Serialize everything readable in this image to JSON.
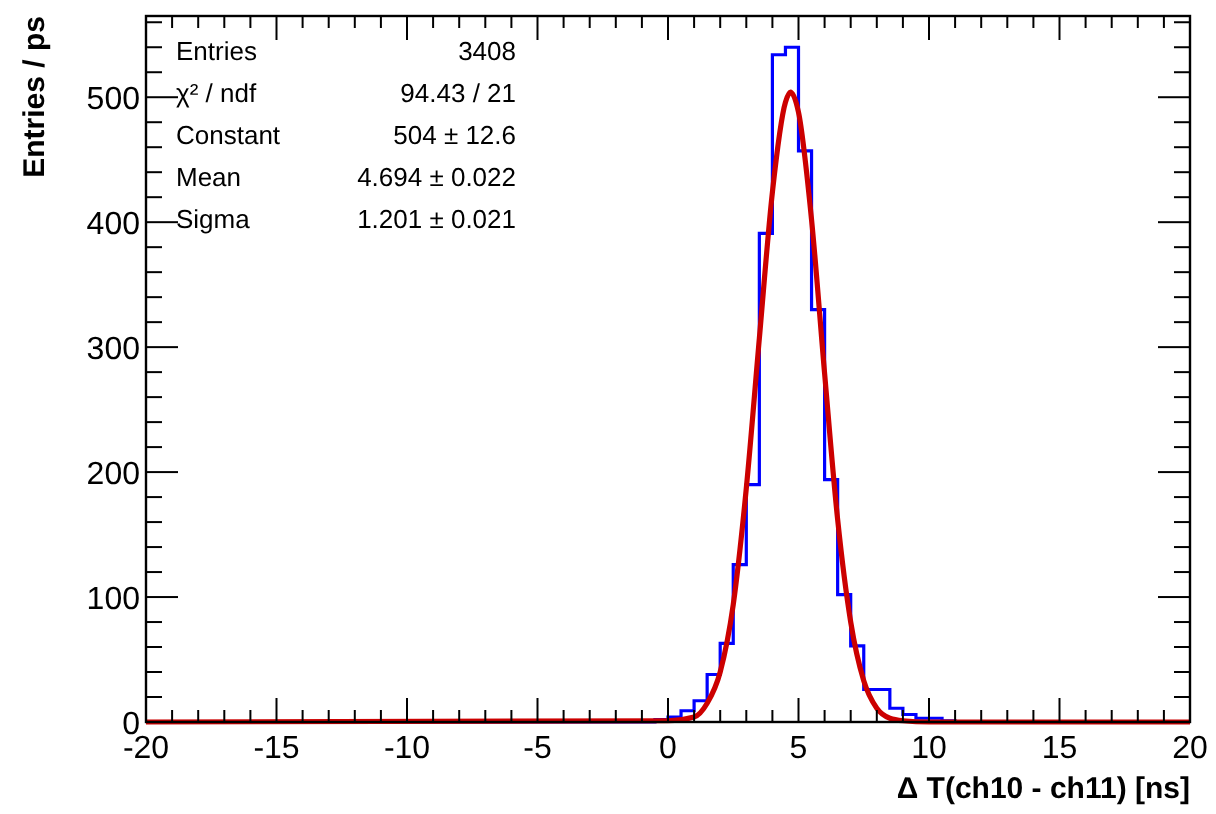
{
  "chart_data": {
    "type": "histogram",
    "xlabel": "Δ T(ch10 - ch11) [ns]",
    "ylabel": "Entries / ps",
    "annotations": [
      "Entries",
      "3408",
      "χ² / ndf",
      "94.43 / 21",
      "Constant",
      "504 ± 12.6",
      "Mean",
      "4.694 ± 0.022",
      "Sigma",
      "1.201 ± 0.021"
    ],
    "xlim": [
      -20,
      20
    ],
    "ylim": [
      0,
      565
    ],
    "xticks": [
      -20,
      {
        "value": -19,
        "label": null
      },
      {
        "value": -18,
        "label": null
      },
      {
        "value": -17,
        "label": null
      },
      {
        "value": -16,
        "label": null
      },
      -15,
      {
        "value": -14,
        "label": null
      },
      {
        "value": -13,
        "label": null
      },
      {
        "value": -12,
        "label": null
      },
      {
        "value": -11,
        "label": null
      },
      -10,
      {
        "value": -9,
        "label": null
      },
      {
        "value": -8,
        "label": null
      },
      {
        "value": -7,
        "label": null
      },
      {
        "value": -6,
        "label": null
      },
      -5,
      {
        "value": -4,
        "label": null
      },
      {
        "value": -3,
        "label": null
      },
      {
        "value": -2,
        "label": null
      },
      {
        "value": -1,
        "label": null
      },
      0,
      {
        "value": 1,
        "label": null
      },
      {
        "value": 2,
        "label": null
      },
      {
        "value": 3,
        "label": null
      },
      {
        "value": 4,
        "label": null
      },
      5,
      {
        "value": 6,
        "label": null
      },
      {
        "value": 7,
        "label": null
      },
      {
        "value": 8,
        "label": null
      },
      {
        "value": 9,
        "label": null
      },
      10,
      {
        "value": 11,
        "label": null
      },
      {
        "value": 12,
        "label": null
      },
      {
        "value": 13,
        "label": null
      },
      {
        "value": 14,
        "label": null
      },
      15,
      {
        "value": 16,
        "label": null
      },
      {
        "value": 17,
        "label": null
      },
      {
        "value": 18,
        "label": null
      },
      {
        "value": 19,
        "label": null
      },
      20
    ],
    "yticks": [
      0,
      {
        "value": 20,
        "label": null
      },
      {
        "value": 40,
        "label": null
      },
      {
        "value": 60,
        "label": null
      },
      {
        "value": 80,
        "label": null
      },
      100,
      {
        "value": 120,
        "label": null
      },
      {
        "value": 140,
        "label": null
      },
      {
        "value": 160,
        "label": null
      },
      {
        "value": 180,
        "label": null
      },
      200,
      {
        "value": 220,
        "label": null
      },
      {
        "value": 240,
        "label": null
      },
      {
        "value": 260,
        "label": null
      },
      {
        "value": 280,
        "label": null
      },
      300,
      {
        "value": 320,
        "label": null
      },
      {
        "value": 340,
        "label": null
      },
      {
        "value": 360,
        "label": null
      },
      {
        "value": 380,
        "label": null
      },
      400,
      {
        "value": 420,
        "label": null
      },
      {
        "value": 440,
        "label": null
      },
      {
        "value": 460,
        "label": null
      },
      {
        "value": 480,
        "label": null
      },
      500,
      {
        "value": 520,
        "label": null
      },
      {
        "value": 540,
        "label": null
      },
      {
        "value": 560,
        "label": null
      }
    ],
    "grid": false,
    "series": [
      {
        "color": "#0000ff",
        "bins": [
          -20,
          -19.5,
          -19,
          -18.5,
          -18,
          -17.5,
          -17,
          -16.5,
          -16,
          -15.5,
          -15,
          -14.5,
          -14,
          -13.5,
          -13,
          -12.5,
          -12,
          -11.5,
          -11,
          -10.5,
          -10,
          -9.5,
          -9,
          -8.5,
          -8,
          -7.5,
          -7,
          -6.5,
          -6,
          -5.5,
          -5,
          -4.5,
          -4,
          -3.5,
          -3,
          -2.5,
          -2,
          -1.5,
          -1,
          -0.5,
          0,
          0.5,
          1,
          1.5,
          2,
          2.5,
          3,
          3.5,
          4,
          4.5,
          5,
          5.5,
          6,
          6.5,
          7,
          7.5,
          8,
          8.5,
          9,
          9.5,
          10,
          10.5,
          11,
          11.5,
          12,
          12.5,
          13,
          13.5,
          14,
          14.5,
          15,
          15.5,
          16,
          16.5,
          17,
          17.5,
          18,
          18.5,
          19,
          19.5,
          20
        ],
        "values": [
          0,
          0,
          0,
          0,
          0,
          0,
          0,
          0,
          0,
          0,
          0,
          0,
          0,
          0,
          0,
          0,
          0,
          0,
          0,
          0,
          0,
          0,
          0,
          0,
          0,
          0,
          0,
          0,
          0,
          0,
          0,
          0,
          0,
          0,
          0,
          0,
          0,
          0,
          0,
          2,
          4,
          9,
          17,
          38,
          63,
          126,
          190,
          391,
          534,
          540,
          457,
          330,
          194,
          102,
          61,
          26,
          26,
          11,
          6,
          3,
          3,
          1,
          0,
          0,
          0,
          0,
          0,
          0,
          0,
          0,
          0,
          0,
          0,
          0,
          0,
          0,
          0,
          0,
          0,
          0
        ]
      },
      {
        "type": "line",
        "color": "#cc0000",
        "x": [
          -20,
          0,
          1,
          1.5,
          2,
          2.5,
          3,
          3.5,
          4,
          4.5,
          4.694,
          5,
          5.5,
          6,
          6.5,
          7,
          7.5,
          8,
          8.5,
          9,
          10,
          20
        ],
        "values": [
          0,
          1,
          4,
          15,
          40,
          94,
          187,
          307,
          424,
          496,
          504,
          488,
          402,
          279,
          162,
          80,
          33,
          11,
          3,
          1,
          0,
          0
        ]
      }
    ]
  }
}
